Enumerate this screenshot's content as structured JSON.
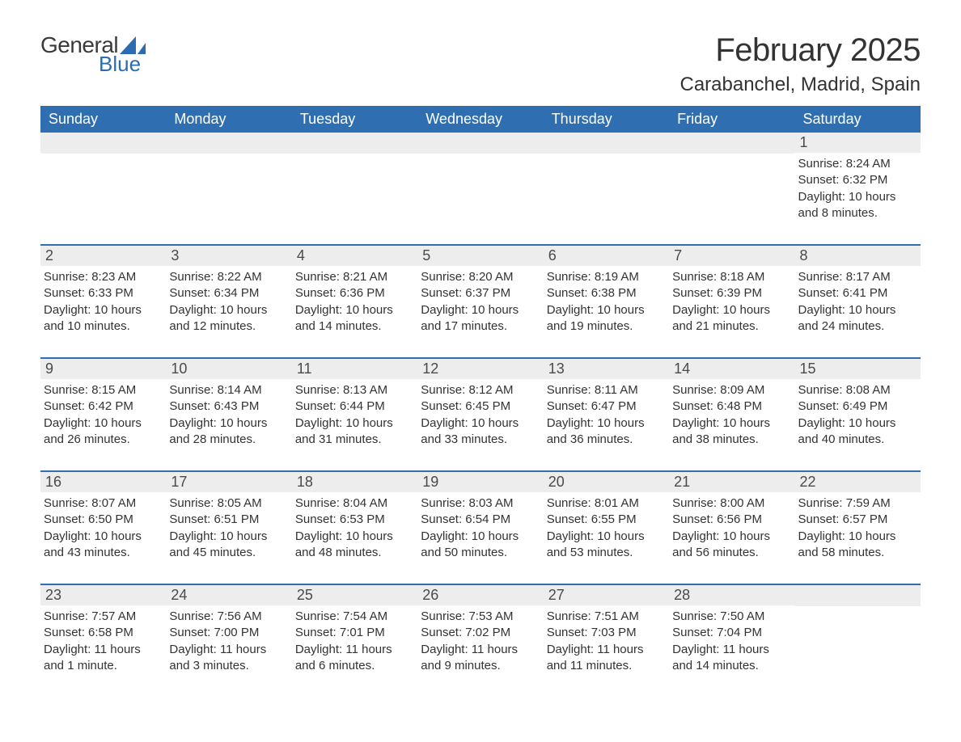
{
  "brand": {
    "general": "General",
    "blue": "Blue",
    "logo_color": "#2b6db0"
  },
  "title": {
    "month": "February 2025",
    "location": "Carabanchel, Madrid, Spain"
  },
  "colors": {
    "header_bg": "#2f6fb1",
    "header_text": "#ffffff",
    "daynum_bg": "#ededed",
    "text": "#333333",
    "rule": "#2f6fb1"
  },
  "days_of_week": [
    "Sunday",
    "Monday",
    "Tuesday",
    "Wednesday",
    "Thursday",
    "Friday",
    "Saturday"
  ],
  "weeks": [
    [
      null,
      null,
      null,
      null,
      null,
      null,
      {
        "n": "1",
        "sunrise": "Sunrise: 8:24 AM",
        "sunset": "Sunset: 6:32 PM",
        "daylight": "Daylight: 10 hours and 8 minutes."
      }
    ],
    [
      {
        "n": "2",
        "sunrise": "Sunrise: 8:23 AM",
        "sunset": "Sunset: 6:33 PM",
        "daylight": "Daylight: 10 hours and 10 minutes."
      },
      {
        "n": "3",
        "sunrise": "Sunrise: 8:22 AM",
        "sunset": "Sunset: 6:34 PM",
        "daylight": "Daylight: 10 hours and 12 minutes."
      },
      {
        "n": "4",
        "sunrise": "Sunrise: 8:21 AM",
        "sunset": "Sunset: 6:36 PM",
        "daylight": "Daylight: 10 hours and 14 minutes."
      },
      {
        "n": "5",
        "sunrise": "Sunrise: 8:20 AM",
        "sunset": "Sunset: 6:37 PM",
        "daylight": "Daylight: 10 hours and 17 minutes."
      },
      {
        "n": "6",
        "sunrise": "Sunrise: 8:19 AM",
        "sunset": "Sunset: 6:38 PM",
        "daylight": "Daylight: 10 hours and 19 minutes."
      },
      {
        "n": "7",
        "sunrise": "Sunrise: 8:18 AM",
        "sunset": "Sunset: 6:39 PM",
        "daylight": "Daylight: 10 hours and 21 minutes."
      },
      {
        "n": "8",
        "sunrise": "Sunrise: 8:17 AM",
        "sunset": "Sunset: 6:41 PM",
        "daylight": "Daylight: 10 hours and 24 minutes."
      }
    ],
    [
      {
        "n": "9",
        "sunrise": "Sunrise: 8:15 AM",
        "sunset": "Sunset: 6:42 PM",
        "daylight": "Daylight: 10 hours and 26 minutes."
      },
      {
        "n": "10",
        "sunrise": "Sunrise: 8:14 AM",
        "sunset": "Sunset: 6:43 PM",
        "daylight": "Daylight: 10 hours and 28 minutes."
      },
      {
        "n": "11",
        "sunrise": "Sunrise: 8:13 AM",
        "sunset": "Sunset: 6:44 PM",
        "daylight": "Daylight: 10 hours and 31 minutes."
      },
      {
        "n": "12",
        "sunrise": "Sunrise: 8:12 AM",
        "sunset": "Sunset: 6:45 PM",
        "daylight": "Daylight: 10 hours and 33 minutes."
      },
      {
        "n": "13",
        "sunrise": "Sunrise: 8:11 AM",
        "sunset": "Sunset: 6:47 PM",
        "daylight": "Daylight: 10 hours and 36 minutes."
      },
      {
        "n": "14",
        "sunrise": "Sunrise: 8:09 AM",
        "sunset": "Sunset: 6:48 PM",
        "daylight": "Daylight: 10 hours and 38 minutes."
      },
      {
        "n": "15",
        "sunrise": "Sunrise: 8:08 AM",
        "sunset": "Sunset: 6:49 PM",
        "daylight": "Daylight: 10 hours and 40 minutes."
      }
    ],
    [
      {
        "n": "16",
        "sunrise": "Sunrise: 8:07 AM",
        "sunset": "Sunset: 6:50 PM",
        "daylight": "Daylight: 10 hours and 43 minutes."
      },
      {
        "n": "17",
        "sunrise": "Sunrise: 8:05 AM",
        "sunset": "Sunset: 6:51 PM",
        "daylight": "Daylight: 10 hours and 45 minutes."
      },
      {
        "n": "18",
        "sunrise": "Sunrise: 8:04 AM",
        "sunset": "Sunset: 6:53 PM",
        "daylight": "Daylight: 10 hours and 48 minutes."
      },
      {
        "n": "19",
        "sunrise": "Sunrise: 8:03 AM",
        "sunset": "Sunset: 6:54 PM",
        "daylight": "Daylight: 10 hours and 50 minutes."
      },
      {
        "n": "20",
        "sunrise": "Sunrise: 8:01 AM",
        "sunset": "Sunset: 6:55 PM",
        "daylight": "Daylight: 10 hours and 53 minutes."
      },
      {
        "n": "21",
        "sunrise": "Sunrise: 8:00 AM",
        "sunset": "Sunset: 6:56 PM",
        "daylight": "Daylight: 10 hours and 56 minutes."
      },
      {
        "n": "22",
        "sunrise": "Sunrise: 7:59 AM",
        "sunset": "Sunset: 6:57 PM",
        "daylight": "Daylight: 10 hours and 58 minutes."
      }
    ],
    [
      {
        "n": "23",
        "sunrise": "Sunrise: 7:57 AM",
        "sunset": "Sunset: 6:58 PM",
        "daylight": "Daylight: 11 hours and 1 minute."
      },
      {
        "n": "24",
        "sunrise": "Sunrise: 7:56 AM",
        "sunset": "Sunset: 7:00 PM",
        "daylight": "Daylight: 11 hours and 3 minutes."
      },
      {
        "n": "25",
        "sunrise": "Sunrise: 7:54 AM",
        "sunset": "Sunset: 7:01 PM",
        "daylight": "Daylight: 11 hours and 6 minutes."
      },
      {
        "n": "26",
        "sunrise": "Sunrise: 7:53 AM",
        "sunset": "Sunset: 7:02 PM",
        "daylight": "Daylight: 11 hours and 9 minutes."
      },
      {
        "n": "27",
        "sunrise": "Sunrise: 7:51 AM",
        "sunset": "Sunset: 7:03 PM",
        "daylight": "Daylight: 11 hours and 11 minutes."
      },
      {
        "n": "28",
        "sunrise": "Sunrise: 7:50 AM",
        "sunset": "Sunset: 7:04 PM",
        "daylight": "Daylight: 11 hours and 14 minutes."
      },
      null
    ]
  ]
}
